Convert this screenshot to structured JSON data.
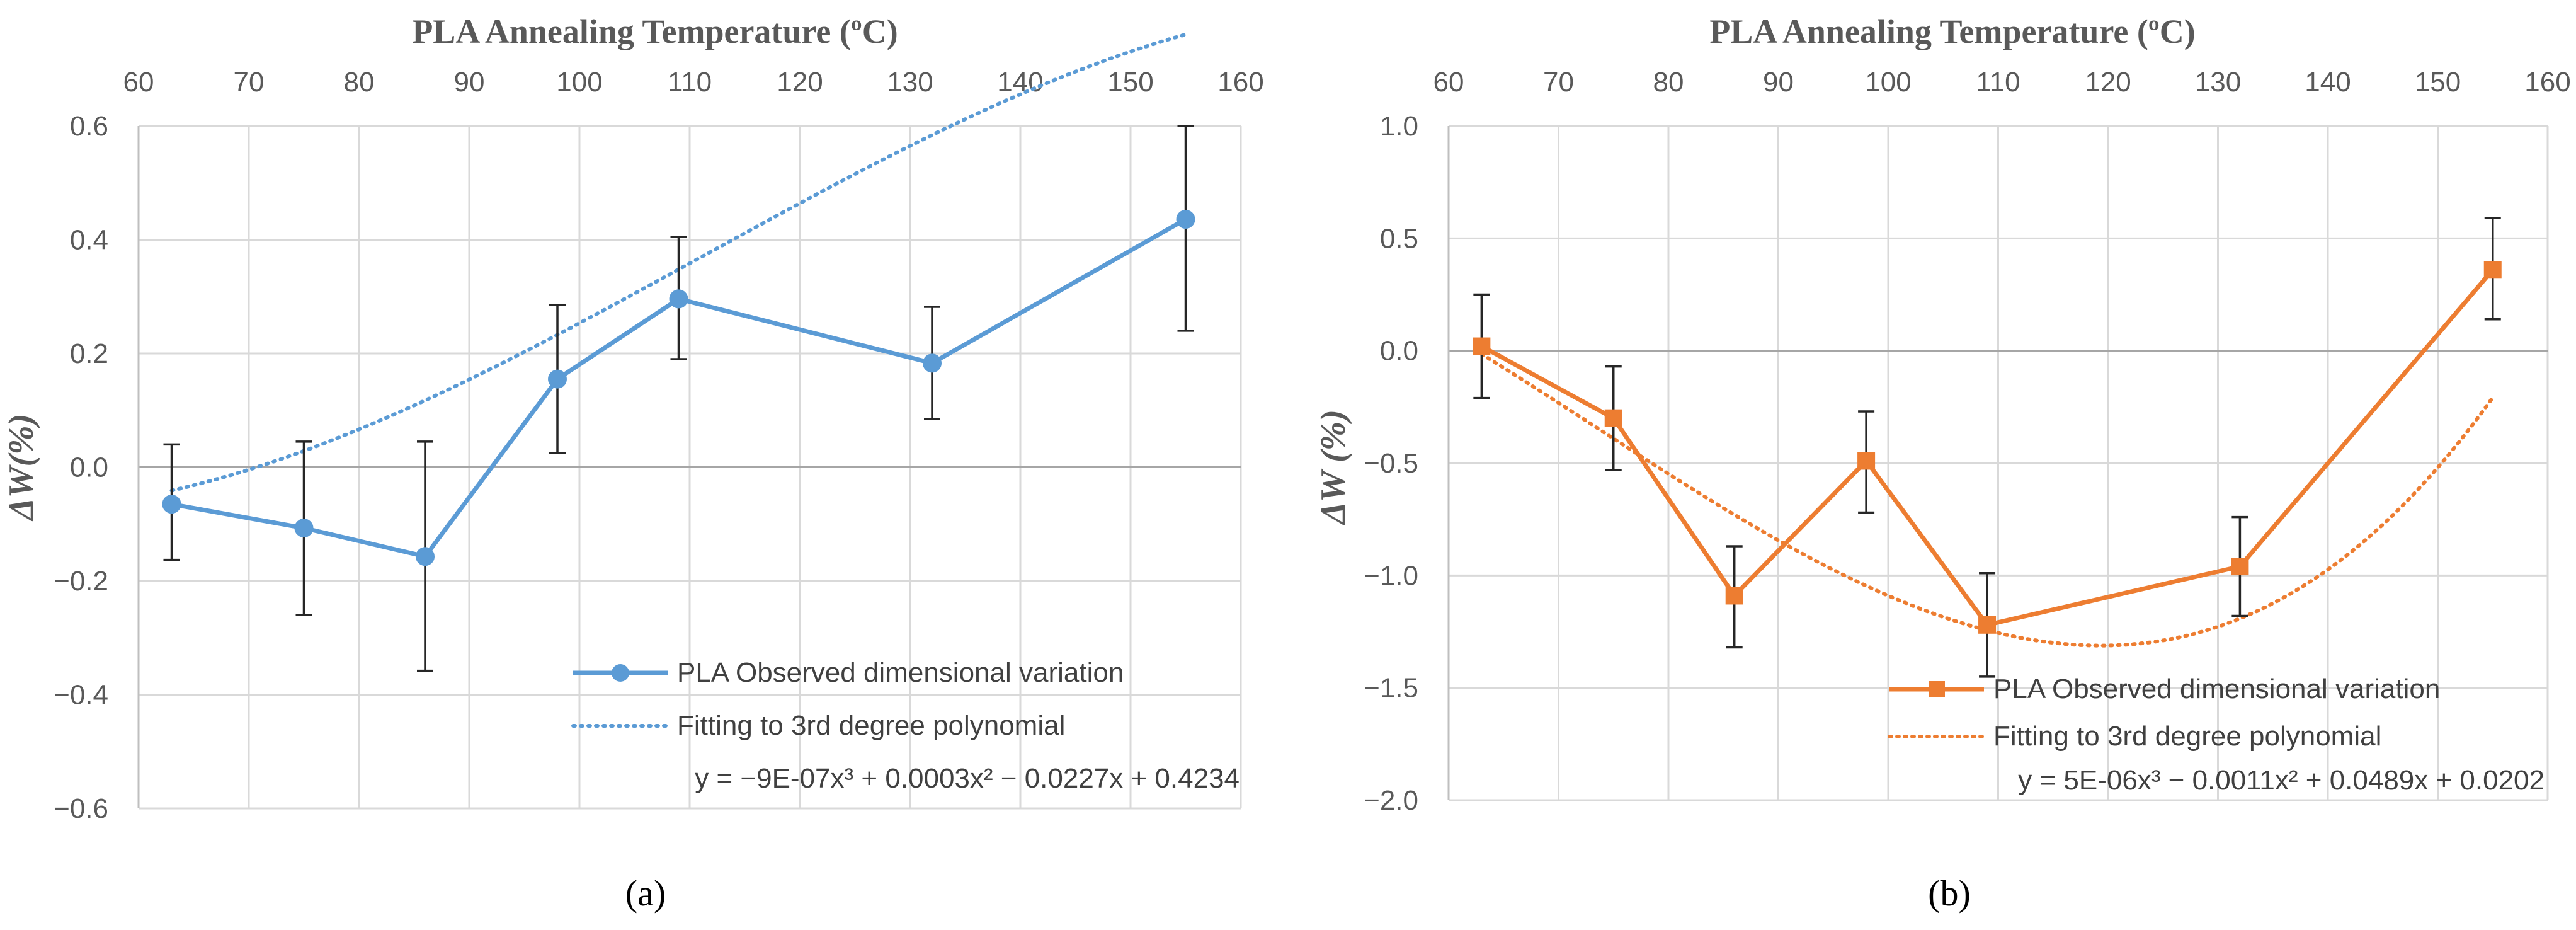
{
  "chart_data": [
    {
      "type": "line",
      "panel": "a",
      "caption": "(a)",
      "title": "PLA Annealing Temperature (ºC)",
      "xlabel": "PLA Annealing Temperature (ºC)",
      "ylabel": "ΔW(%)",
      "xlim": [
        60,
        160
      ],
      "ylim": [
        -0.6,
        0.6
      ],
      "x_ticks": [
        60,
        70,
        80,
        90,
        100,
        110,
        120,
        130,
        140,
        150,
        160
      ],
      "x_tick_labels": [
        "60",
        "70",
        "80",
        "90",
        "100",
        "110",
        "120",
        "130",
        "140",
        "150",
        "160"
      ],
      "y_ticks": [
        -0.6,
        -0.4,
        -0.2,
        0.0,
        0.2,
        0.4,
        0.6
      ],
      "y_tick_labels": [
        "−0.6",
        "−0.4",
        "−0.2",
        "0.0",
        "0.2",
        "0.4",
        "0.6"
      ],
      "color": "#5b9bd5",
      "marker": "circle",
      "legend_placement": "bottom-right",
      "series": [
        {
          "name": "PLA Observed dimensional variation",
          "x": [
            63,
            75,
            86,
            98,
            109,
            132,
            155
          ],
          "values": [
            -0.065,
            -0.107,
            -0.157,
            0.155,
            0.296,
            0.183,
            0.436
          ],
          "err_low": [
            -0.163,
            -0.26,
            -0.358,
            0.025,
            0.19,
            0.085,
            0.24
          ],
          "err_high": [
            0.04,
            0.045,
            0.045,
            0.285,
            0.405,
            0.282,
            0.6
          ]
        },
        {
          "name": "Fitting to 3rd degree polynomial",
          "style": "dotted",
          "coefficients": [
            -9e-07,
            0.0003,
            -0.0227,
            0.4234
          ],
          "x_range": [
            63,
            155
          ]
        }
      ],
      "equation": "y = −9E-07x³ + 0.0003x² − 0.0227x + 0.4234"
    },
    {
      "type": "line",
      "panel": "b",
      "caption": "(b)",
      "title": "PLA Annealing Temperature (ºC)",
      "xlabel": "PLA Annealing Temperature (ºC)",
      "ylabel": "ΔW (%)",
      "xlim": [
        60,
        160
      ],
      "ylim": [
        -2.0,
        1.0
      ],
      "x_ticks": [
        60,
        70,
        80,
        90,
        100,
        110,
        120,
        130,
        140,
        150,
        160
      ],
      "x_tick_labels": [
        "60",
        "70",
        "80",
        "90",
        "100",
        "110",
        "120",
        "130",
        "140",
        "150",
        "160"
      ],
      "y_ticks": [
        -2.0,
        -1.5,
        -1.0,
        -0.5,
        0.0,
        0.5,
        1.0
      ],
      "y_tick_labels": [
        "−2.0",
        "−1.5",
        "−1.0",
        "−0.5",
        "0.0",
        "0.5",
        "1.0"
      ],
      "color": "#ed7d31",
      "marker": "square",
      "legend_placement": "bottom-right",
      "series": [
        {
          "name": "PLA Observed dimensional variation",
          "x": [
            63,
            75,
            86,
            98,
            109,
            132,
            155
          ],
          "values": [
            0.02,
            -0.3,
            -1.09,
            -0.49,
            -1.22,
            -0.96,
            0.36
          ],
          "err_low": [
            -0.21,
            -0.53,
            -1.32,
            -0.72,
            -1.45,
            -1.18,
            0.14
          ],
          "err_high": [
            0.25,
            -0.07,
            -0.87,
            -0.27,
            -0.99,
            -0.74,
            0.59
          ]
        },
        {
          "name": "Fitting to 3rd degree polynomial",
          "style": "dotted",
          "coefficients": [
            5e-06,
            -0.0011,
            0.0489,
            0.0202
          ],
          "x_range": [
            63,
            155
          ]
        }
      ],
      "equation": "y = 5E-06x³ − 0.0011x² + 0.0489x + 0.0202"
    }
  ]
}
